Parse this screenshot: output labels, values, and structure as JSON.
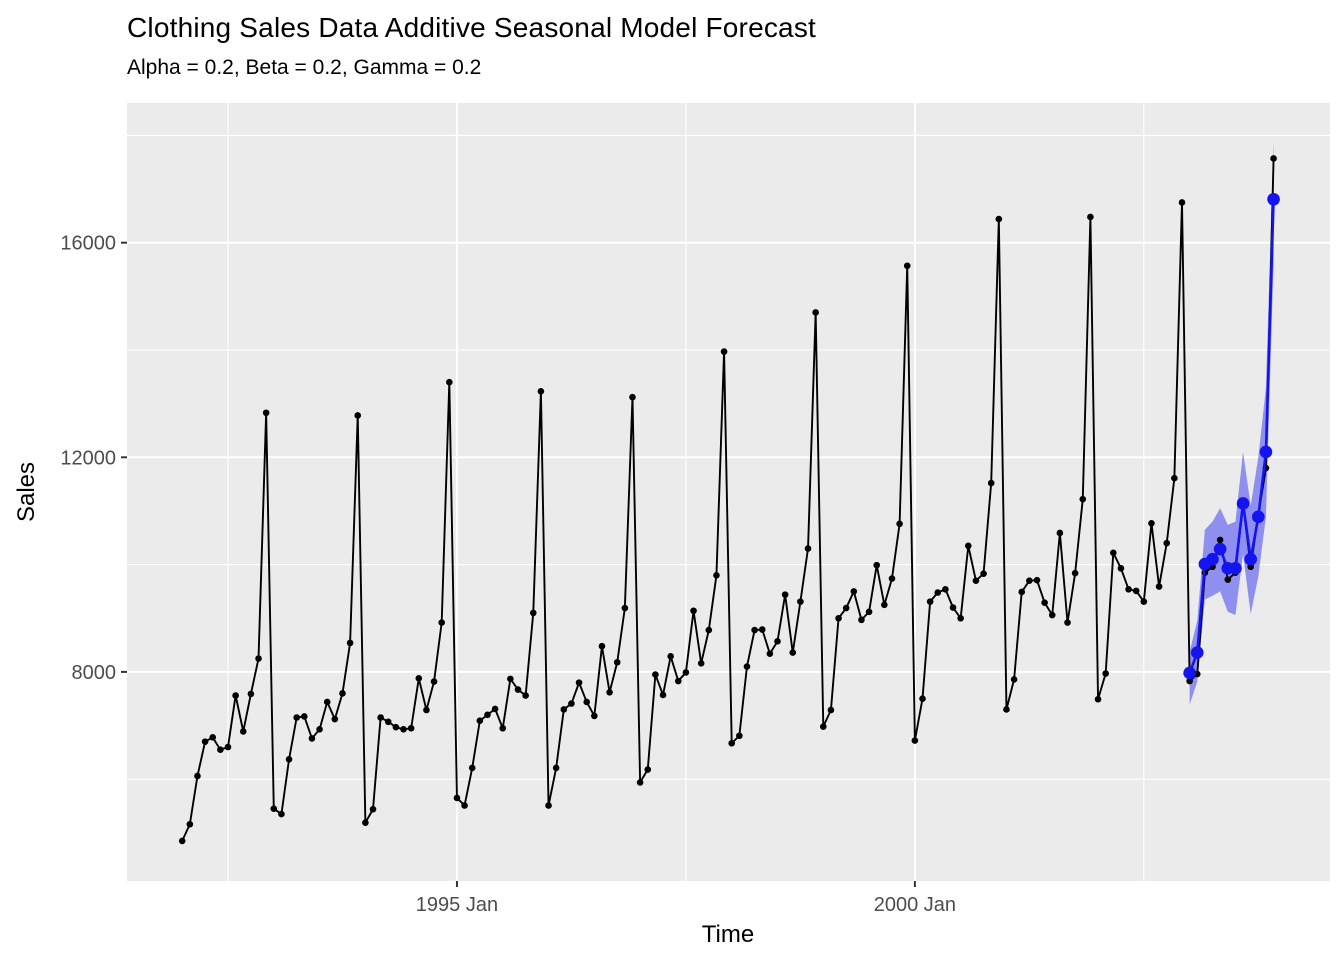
{
  "header": {
    "title": "Clothing Sales Data Additive Seasonal Model Forecast",
    "subtitle": "Alpha = 0.2, Beta = 0.2, Gamma = 0.2"
  },
  "chart_data": {
    "type": "line",
    "title": "Clothing Sales Data Additive Seasonal Model Forecast",
    "subtitle": "Alpha = 0.2, Beta = 0.2, Gamma = 0.2",
    "xlabel": "Time",
    "ylabel": "Sales",
    "time_start": "1992 Jan",
    "time_end": "2003 Dec",
    "frequency": "monthly",
    "x_ticks": [
      {
        "label": "1995 Jan",
        "month_index": 36
      },
      {
        "label": "2000 Jan",
        "month_index": 96
      }
    ],
    "x_minor_month_indices": [
      6,
      66,
      126
    ],
    "y_ticks": [
      8000,
      12000,
      16000
    ],
    "y_minor_ticks": [
      6000,
      10000,
      14000,
      18000
    ],
    "ylim": [
      4100,
      18650
    ],
    "grid": true,
    "legend": "none",
    "panel_bg": "#ebebeb",
    "grid_color": "#ffffff",
    "tick_label_color": "#4d4d4d",
    "tick_mark_color": "#333333",
    "series": [
      {
        "name": "actual-sales",
        "color": "#000000",
        "start_month_index": 0,
        "values": [
          4850,
          5160,
          6060,
          6700,
          6780,
          6550,
          6600,
          7560,
          6890,
          7590,
          8250,
          12830,
          5450,
          5350,
          6370,
          7150,
          7170,
          6760,
          6930,
          7440,
          7120,
          7600,
          8540,
          12780,
          5190,
          5440,
          7150,
          7070,
          6970,
          6930,
          6950,
          7880,
          7290,
          7820,
          8920,
          13400,
          5650,
          5510,
          6210,
          7090,
          7200,
          7310,
          6950,
          7870,
          7670,
          7560,
          9100,
          13230,
          5510,
          6210,
          7300,
          7410,
          7800,
          7440,
          7180,
          8480,
          7620,
          8180,
          9190,
          13120,
          5940,
          6180,
          7950,
          7570,
          8290,
          7830,
          7990,
          9140,
          8160,
          8780,
          9800,
          13970,
          6670,
          6810,
          8100,
          8780,
          8790,
          8340,
          8570,
          9440,
          8360,
          9310,
          10300,
          14700,
          6980,
          7290,
          9000,
          9190,
          9500,
          8970,
          9120,
          9990,
          9250,
          9740,
          10760,
          15570,
          6720,
          7500,
          9310,
          9480,
          9540,
          9200,
          9000,
          10350,
          9700,
          9830,
          11520,
          16440,
          7300,
          7860,
          9490,
          9700,
          9710,
          9290,
          9060,
          10590,
          8920,
          9840,
          11220,
          16480,
          7490,
          7970,
          10220,
          9930,
          9540,
          9510,
          9310,
          10770,
          9590,
          10400,
          11610,
          16750,
          7830,
          7960,
          9850,
          9960,
          10460,
          9720,
          9850,
          11160,
          9960,
          10930,
          11800,
          17570
        ]
      },
      {
        "name": "forecast",
        "color": "#1414f0",
        "ribbon_color": "#7f7ff0",
        "start_month_index": 132,
        "values": [
          7980,
          8360,
          10010,
          10100,
          10290,
          9930,
          9930,
          11140,
          10100,
          10890,
          12100,
          16810
        ],
        "lower": [
          7390,
          7820,
          9350,
          9420,
          9500,
          9120,
          9060,
          10200,
          9080,
          9780,
          10900,
          15650
        ],
        "upper": [
          8380,
          8950,
          10650,
          10800,
          11050,
          10740,
          10800,
          12100,
          11100,
          12000,
          13300,
          17900
        ]
      }
    ]
  }
}
